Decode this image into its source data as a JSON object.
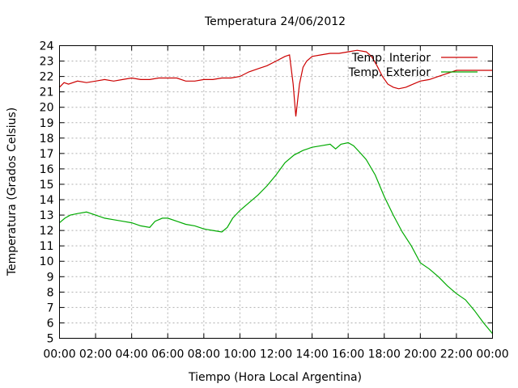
{
  "chart_data": {
    "type": "line",
    "title": "Temperatura 24/06/2012",
    "xlabel": "Tiempo (Hora Local Argentina)",
    "ylabel": "Temperatura (Grados Celsius)",
    "xlim": [
      0,
      24
    ],
    "ylim": [
      5,
      24
    ],
    "x_ticks": [
      "00:00",
      "02:00",
      "04:00",
      "06:00",
      "08:00",
      "10:00",
      "12:00",
      "14:00",
      "16:00",
      "18:00",
      "20:00",
      "22:00",
      "00:00"
    ],
    "y_ticks": [
      "5",
      "6",
      "7",
      "8",
      "9",
      "10",
      "11",
      "12",
      "13",
      "14",
      "15",
      "16",
      "17",
      "18",
      "19",
      "20",
      "21",
      "22",
      "23",
      "24"
    ],
    "grid": true,
    "legend_position": "top-right",
    "series": [
      {
        "name": "Temp. Interior",
        "color": "#cc0000",
        "x": [
          0,
          0.25,
          0.5,
          1,
          1.5,
          2,
          2.5,
          3,
          3.5,
          4,
          4.5,
          5,
          5.5,
          6,
          6.5,
          7,
          7.5,
          8,
          8.5,
          9,
          9.5,
          10,
          10.5,
          11,
          11.5,
          12,
          12.5,
          12.75,
          12.95,
          13.1,
          13.3,
          13.5,
          13.7,
          14,
          14.5,
          15,
          15.5,
          16,
          16.5,
          17,
          17.3,
          17.6,
          17.9,
          18.2,
          18.5,
          18.8,
          19.2,
          19.6,
          20,
          20.5,
          21,
          21.5,
          22,
          23,
          24
        ],
        "y": [
          21.3,
          21.6,
          21.5,
          21.7,
          21.6,
          21.7,
          21.8,
          21.7,
          21.8,
          21.9,
          21.8,
          21.8,
          21.9,
          21.9,
          21.9,
          21.7,
          21.7,
          21.8,
          21.8,
          21.9,
          21.9,
          22.0,
          22.3,
          22.5,
          22.7,
          23.0,
          23.3,
          23.4,
          21.5,
          19.4,
          21.5,
          22.6,
          23.0,
          23.3,
          23.4,
          23.5,
          23.5,
          23.6,
          23.7,
          23.6,
          23.3,
          22.7,
          22.0,
          21.5,
          21.3,
          21.2,
          21.3,
          21.5,
          21.7,
          21.8,
          22.0,
          22.2,
          22.4,
          22.4,
          22.4
        ]
      },
      {
        "name": "Temp. Exterior",
        "color": "#00aa00",
        "x": [
          0,
          0.3,
          0.6,
          1,
          1.5,
          2,
          2.5,
          3,
          3.5,
          4,
          4.5,
          5,
          5.3,
          5.7,
          6,
          6.5,
          7,
          7.5,
          8,
          8.5,
          9,
          9.3,
          9.6,
          10,
          10.5,
          11,
          11.5,
          12,
          12.5,
          13,
          13.5,
          14,
          14.5,
          15,
          15.3,
          15.6,
          16,
          16.3,
          16.7,
          17,
          17.5,
          18,
          18.5,
          19,
          19.5,
          20,
          20.5,
          21,
          21.5,
          22,
          22.5,
          23,
          23.5,
          24
        ],
        "y": [
          12.5,
          12.8,
          13.0,
          13.1,
          13.2,
          13.0,
          12.8,
          12.7,
          12.6,
          12.5,
          12.3,
          12.2,
          12.6,
          12.8,
          12.8,
          12.6,
          12.4,
          12.3,
          12.1,
          12.0,
          11.9,
          12.2,
          12.8,
          13.3,
          13.8,
          14.3,
          14.9,
          15.6,
          16.4,
          16.9,
          17.2,
          17.4,
          17.5,
          17.6,
          17.3,
          17.6,
          17.7,
          17.5,
          17.0,
          16.6,
          15.6,
          14.2,
          13.0,
          11.9,
          11.0,
          9.9,
          9.5,
          9.0,
          8.4,
          7.9,
          7.5,
          6.8,
          6.0,
          5.3
        ]
      }
    ]
  }
}
